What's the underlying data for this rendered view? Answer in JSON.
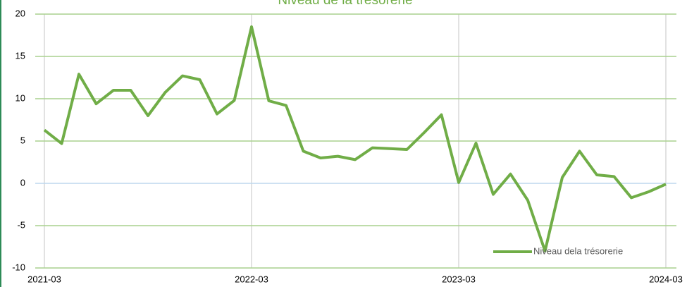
{
  "chart_data": {
    "type": "line",
    "title": "Niveau de la trésorerie",
    "categories": [
      "2021-03",
      null,
      null,
      null,
      null,
      null,
      null,
      null,
      null,
      null,
      null,
      null,
      "2022-03",
      null,
      null,
      null,
      null,
      null,
      null,
      null,
      null,
      null,
      null,
      null,
      "2023-03",
      null,
      null,
      null,
      null,
      null,
      null,
      null,
      null,
      null,
      null,
      null,
      "2024-03"
    ],
    "series": [
      {
        "name": "Niveau dela trésorerie",
        "color": "#70ad47",
        "values": [
          6.3,
          4.7,
          12.9,
          9.4,
          11.0,
          11.0,
          8.0,
          10.75,
          12.7,
          12.25,
          8.2,
          9.8,
          18.5,
          9.75,
          9.2,
          3.8,
          3.0,
          3.2,
          2.8,
          4.2,
          4.1,
          4.0,
          6.0,
          8.1,
          0.1,
          4.75,
          -1.3,
          1.1,
          -2.0,
          -8.0,
          0.7,
          3.8,
          1.0,
          0.8,
          -1.7,
          -1.0,
          -0.1
        ]
      }
    ],
    "ylim": [
      -10,
      20
    ],
    "yticks": [
      -10,
      -5,
      0,
      5,
      10,
      15,
      20
    ],
    "grid": true,
    "legend": "lower right"
  }
}
